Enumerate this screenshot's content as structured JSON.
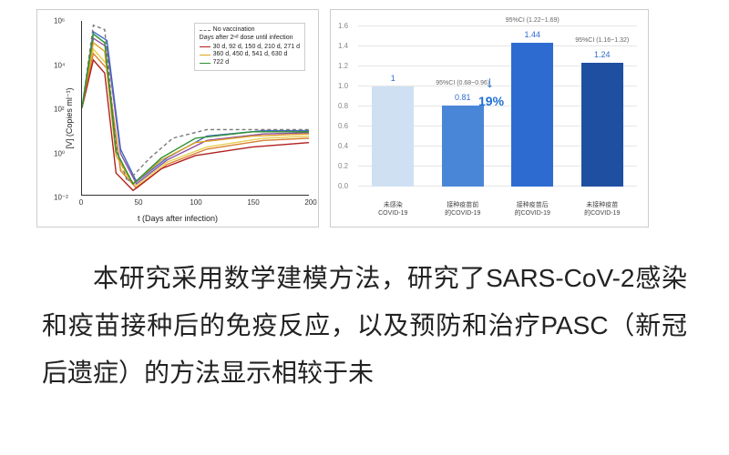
{
  "line_chart": {
    "type": "line",
    "xlabel": "t  (Days after infection)",
    "ylabel": "[V]  (Copies ml⁻¹)",
    "xlim": [
      0,
      200
    ],
    "xticks": [
      0,
      50,
      100,
      150,
      200
    ],
    "ylim_log10": [
      -2,
      6
    ],
    "yticks_log10": [
      -2,
      0,
      2,
      4,
      6
    ],
    "ytick_labels": [
      "10⁻²",
      "10⁰",
      "10²",
      "10⁴",
      "10⁶"
    ],
    "legend_title": "Days after 2ⁿᵈ dose until infection",
    "series": [
      {
        "label": "No vaccination",
        "color": "#777777",
        "dash": "4 3",
        "points": [
          [
            0,
            2.0
          ],
          [
            10,
            5.8
          ],
          [
            20,
            5.6
          ],
          [
            30,
            0.2
          ],
          [
            40,
            -1.4
          ],
          [
            60,
            -0.3
          ],
          [
            80,
            0.6
          ],
          [
            110,
            1.0
          ],
          [
            160,
            1.0
          ],
          [
            200,
            1.0
          ]
        ]
      },
      {
        "label": "30 d, 92 d, 150 d, 210 d, 271 d",
        "color": "#b11f1f",
        "points": [
          [
            0,
            2.0
          ],
          [
            10,
            4.2
          ],
          [
            20,
            3.6
          ],
          [
            30,
            -1.0
          ],
          [
            45,
            -1.8
          ],
          [
            70,
            -0.8
          ],
          [
            100,
            -0.2
          ],
          [
            150,
            0.2
          ],
          [
            200,
            0.4
          ]
        ]
      },
      {
        "label": "360 d, 450 d, 541 d, 630 d",
        "color": "#e0a020",
        "points": [
          [
            0,
            2.0
          ],
          [
            10,
            5.0
          ],
          [
            20,
            4.6
          ],
          [
            30,
            -0.2
          ],
          [
            45,
            -1.5
          ],
          [
            70,
            -0.4
          ],
          [
            100,
            0.4
          ],
          [
            150,
            0.7
          ],
          [
            200,
            0.8
          ]
        ]
      },
      {
        "label": "722 d",
        "color": "#2a9030",
        "points": [
          [
            0,
            2.0
          ],
          [
            10,
            5.4
          ],
          [
            20,
            5.0
          ],
          [
            30,
            0.0
          ],
          [
            45,
            -1.5
          ],
          [
            70,
            -0.3
          ],
          [
            100,
            0.6
          ],
          [
            150,
            0.9
          ],
          [
            200,
            0.9
          ]
        ]
      }
    ],
    "extra_series": [
      {
        "color": "#e6d050",
        "points": [
          [
            0,
            2.0
          ],
          [
            10,
            4.7
          ],
          [
            22,
            4.0
          ],
          [
            34,
            -0.8
          ],
          [
            48,
            -1.6
          ],
          [
            75,
            -0.5
          ],
          [
            110,
            0.2
          ],
          [
            160,
            0.6
          ],
          [
            200,
            0.7
          ]
        ]
      },
      {
        "color": "#d97f32",
        "points": [
          [
            0,
            2.0
          ],
          [
            10,
            4.5
          ],
          [
            22,
            3.8
          ],
          [
            34,
            -0.9
          ],
          [
            48,
            -1.7
          ],
          [
            75,
            -0.6
          ],
          [
            110,
            0.1
          ],
          [
            160,
            0.5
          ],
          [
            200,
            0.6
          ]
        ]
      },
      {
        "color": "#8f4fa0",
        "points": [
          [
            0,
            2.0
          ],
          [
            10,
            5.2
          ],
          [
            22,
            4.8
          ],
          [
            34,
            -0.1
          ],
          [
            48,
            -1.5
          ],
          [
            75,
            -0.4
          ],
          [
            110,
            0.5
          ],
          [
            160,
            0.8
          ],
          [
            200,
            0.85
          ]
        ]
      },
      {
        "color": "#4168c4",
        "points": [
          [
            0,
            2.0
          ],
          [
            10,
            5.5
          ],
          [
            22,
            5.1
          ],
          [
            34,
            0.1
          ],
          [
            48,
            -1.4
          ],
          [
            75,
            -0.3
          ],
          [
            110,
            0.7
          ],
          [
            160,
            0.95
          ],
          [
            200,
            0.95
          ]
        ]
      }
    ],
    "border_color": "#cccccc",
    "axis_color": "#333333",
    "tick_fontsize": 8,
    "label_fontsize": 9
  },
  "bar_chart": {
    "type": "bar",
    "ylim": [
      0,
      1.6
    ],
    "ytick_step": 0.2,
    "grid_color": "#e5e5e5",
    "bars": [
      {
        "value": 1.0,
        "value_label": "1",
        "ci": "",
        "label": "未感染\\nCOVID-19",
        "color": "#cfe0f2"
      },
      {
        "value": 0.81,
        "value_label": "0.81",
        "ci": "95%CI (0.68~0.96)",
        "label": "接种疫苗前\\n的COVID-19",
        "color": "#4a86d8"
      },
      {
        "value": 1.44,
        "value_label": "1.44",
        "ci": "95%CI (1.22~1.69)",
        "label": "接种疫苗后\\n的COVID-19",
        "color": "#2e6bd0"
      },
      {
        "value": 1.24,
        "value_label": "1.24",
        "ci": "95%CI (1.16~1.32)",
        "label": "未接种疫苗\\n的COVID-19",
        "color": "#1f4fa0"
      }
    ],
    "arrow": {
      "between": [
        0,
        1
      ],
      "percent": "19%",
      "color": "#1f6fd4"
    },
    "label_fontsize": 7,
    "value_color": "#2e6bd0"
  },
  "body": {
    "paragraph": "本研究采用数学建模方法，研究了SARS-CoV-2感染和疫苗接种后的免疫反应，以及预防和治疗PASC（新冠后遗症）的方法显示相较于未",
    "fontsize": 28,
    "color": "#222222",
    "line_height": 1.85
  }
}
